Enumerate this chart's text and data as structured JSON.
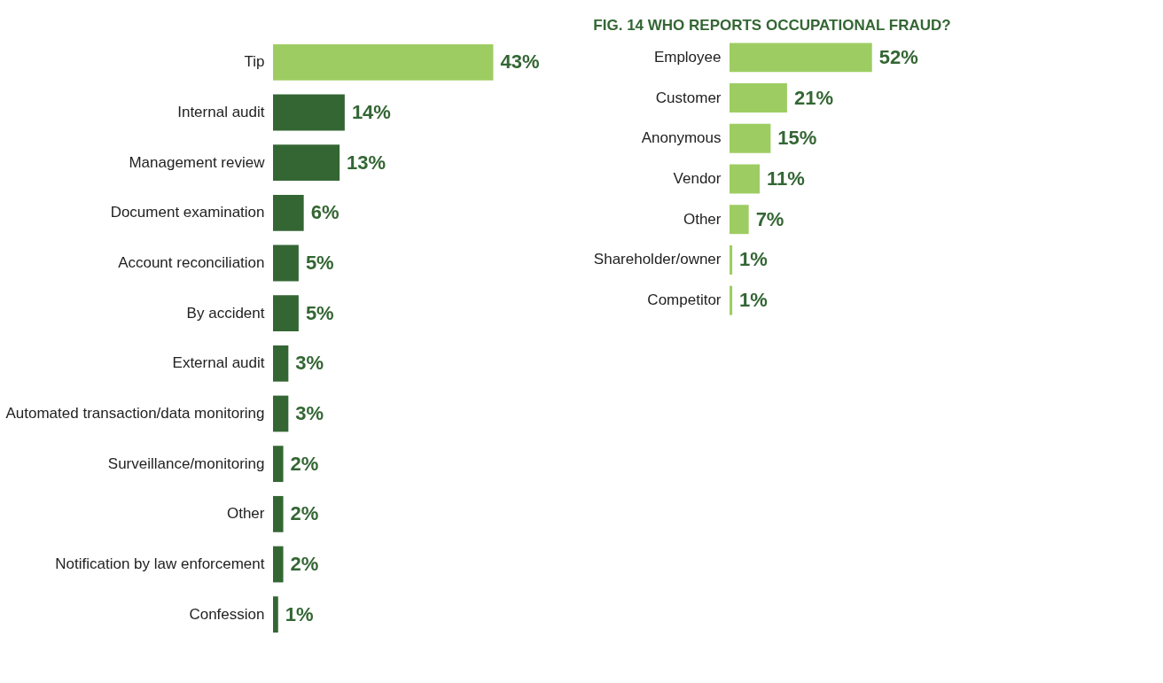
{
  "chart_data": [
    {
      "type": "bar",
      "orientation": "horizontal",
      "categories": [
        "Tip",
        "Internal audit",
        "Management review",
        "Document examination",
        "Account reconciliation",
        "By accident",
        "External audit",
        "Automated transaction/data monitoring",
        "Surveillance/monitoring",
        "Other",
        "Notification by law enforcement",
        "Confession"
      ],
      "values": [
        43,
        14,
        13,
        6,
        5,
        5,
        3,
        3,
        2,
        2,
        2,
        1
      ],
      "value_labels": [
        "43%",
        "14%",
        "13%",
        "6%",
        "5%",
        "5%",
        "3%",
        "3%",
        "2%",
        "2%",
        "2%",
        "1%"
      ],
      "colors": [
        "#9dcd62",
        "#346634",
        "#346634",
        "#346634",
        "#346634",
        "#346634",
        "#346634",
        "#346634",
        "#346634",
        "#346634",
        "#346634",
        "#346634"
      ]
    },
    {
      "type": "bar",
      "orientation": "horizontal",
      "title": "FIG. 14  WHO REPORTS OCCUPATIONAL FRAUD?",
      "categories": [
        "Employee",
        "Customer",
        "Anonymous",
        "Vendor",
        "Other",
        "Shareholder/owner",
        "Competitor"
      ],
      "values": [
        52,
        21,
        15,
        11,
        7,
        1,
        1
      ],
      "value_labels": [
        "52%",
        "21%",
        "15%",
        "11%",
        "7%",
        "1%",
        "1%"
      ],
      "color": "#9dcd62"
    }
  ]
}
